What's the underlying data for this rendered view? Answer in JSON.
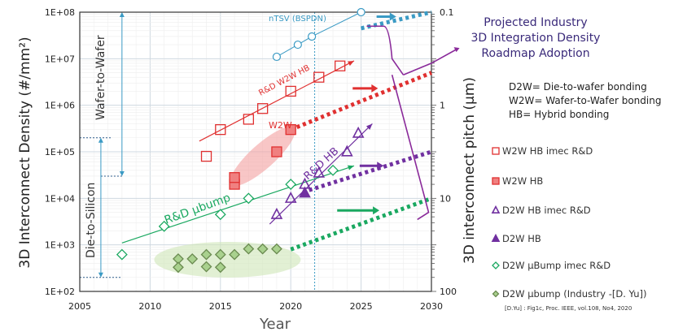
{
  "chart_data": {
    "type": "scatter",
    "xlabel": "Year",
    "ylabel": "3D Interconnect Density (#/mm²)",
    "ylabel2": "3D interconnect pitch (µm)",
    "xlim": [
      2005,
      2030
    ],
    "ylim": [
      100,
      100000000
    ],
    "yscale": "log",
    "grid": true,
    "x_ticks": [
      "2005",
      "2010",
      "2015",
      "2020",
      "2025",
      "2030"
    ],
    "y_ticks": [
      "1E+02",
      "1E+03",
      "1E+04",
      "1E+05",
      "1E+06",
      "1E+07",
      "1E+08"
    ],
    "y2_ticks": [
      "0.1",
      "1",
      "10",
      "100"
    ],
    "colors": {
      "w2w": "#e03030",
      "w2w_fill": "#f08080",
      "d2w_hb": "#7030a0",
      "ubump": "#1aa860",
      "industry": "#a9d18e",
      "ntsv": "#3a9ac4",
      "bracket": "#8a2a9a"
    },
    "series": [
      {
        "name": "W2W HB imec R&D",
        "marker": "open-square",
        "color": "#e03030",
        "points": [
          [
            2014,
            80000
          ],
          [
            2015,
            300000
          ],
          [
            2017,
            500000
          ],
          [
            2018,
            850000
          ],
          [
            2020,
            2000000
          ],
          [
            2022,
            4000000
          ],
          [
            2023.5,
            7000000
          ]
        ]
      },
      {
        "name": "W2W HB",
        "marker": "filled-square",
        "color": "#f08080",
        "points": [
          [
            2016,
            20000
          ],
          [
            2016,
            28000
          ],
          [
            2019,
            100000
          ],
          [
            2020,
            300000
          ]
        ]
      },
      {
        "name": "D2W HB imec R&D",
        "marker": "open-triangle",
        "color": "#7030a0",
        "points": [
          [
            2019,
            4500
          ],
          [
            2020,
            10000
          ],
          [
            2021,
            20000
          ],
          [
            2022,
            35000
          ],
          [
            2024,
            100000
          ],
          [
            2024.8,
            250000
          ]
        ]
      },
      {
        "name": "D2W HB",
        "marker": "filled-triangle",
        "color": "#7030a0",
        "points": [
          [
            2021,
            13000
          ]
        ]
      },
      {
        "name": "D2W µBump imec R&D",
        "marker": "open-diamond",
        "color": "#1aa860",
        "points": [
          [
            2008,
            620
          ],
          [
            2011,
            2500
          ],
          [
            2015,
            4500
          ],
          [
            2017,
            10000
          ],
          [
            2020,
            20000
          ],
          [
            2023,
            40000
          ]
        ]
      },
      {
        "name": "D2W µbump (Industry -[D. Yu])",
        "marker": "filled-diamond",
        "color": "#a9d18e",
        "points": [
          [
            2012,
            500
          ],
          [
            2012,
            330
          ],
          [
            2013,
            500
          ],
          [
            2014,
            620
          ],
          [
            2014,
            340
          ],
          [
            2015,
            620
          ],
          [
            2015,
            330
          ],
          [
            2016,
            620
          ],
          [
            2017,
            820
          ],
          [
            2018,
            820
          ],
          [
            2019,
            820
          ]
        ]
      },
      {
        "name": "nTSV (BSPDN)",
        "marker": "open-circle",
        "color": "#3a9ac4",
        "points": [
          [
            2019,
            11000000
          ],
          [
            2020.5,
            20000000
          ],
          [
            2021.5,
            30000000
          ],
          [
            2025,
            100000000
          ]
        ]
      }
    ],
    "trend_lines": [
      {
        "label": "R&D W2W HB",
        "color": "#e03030",
        "from": [
          2013.5,
          170000
        ],
        "to": [
          2024.5,
          9000000
        ]
      },
      {
        "label": "R&D HB",
        "color": "#7030a0",
        "from": [
          2018.5,
          2800
        ],
        "to": [
          2025.8,
          400000
        ]
      },
      {
        "label": "R&D µbump",
        "color": "#1aa860",
        "from": [
          2008,
          1100
        ],
        "to": [
          2024.5,
          50000
        ]
      }
    ],
    "projections": [
      {
        "color": "#3a9ac4",
        "from": [
          2025,
          45000000
        ],
        "to": [
          2030,
          100000000
        ]
      },
      {
        "color": "#e03030",
        "from": [
          2020,
          300000
        ],
        "to": [
          2030,
          5000000
        ]
      },
      {
        "color": "#7030a0",
        "from": [
          2021.3,
          15000
        ],
        "to": [
          2030,
          100000
        ]
      },
      {
        "color": "#1aa860",
        "from": [
          2020,
          800
        ],
        "to": [
          2030,
          10000
        ]
      }
    ],
    "annotations": {
      "ntsv": "nTSV (BSPDN)",
      "w2w": "W2W",
      "wafer_to_wafer": "Wafer-to-Wafer",
      "die_to_silicon": "Die-to-Silicon",
      "projected": [
        "Projected Industry",
        "3D Integration Density",
        "Roadmap Adoption"
      ],
      "definitions": [
        "D2W= Die-to-wafer bonding",
        "W2W= Wafer-to-Wafer bonding",
        "HB= Hybrid bonding"
      ],
      "citation": "[D.Yu] : Fig1c, Proc. IEEE, vol.108, No4, 2020"
    }
  }
}
